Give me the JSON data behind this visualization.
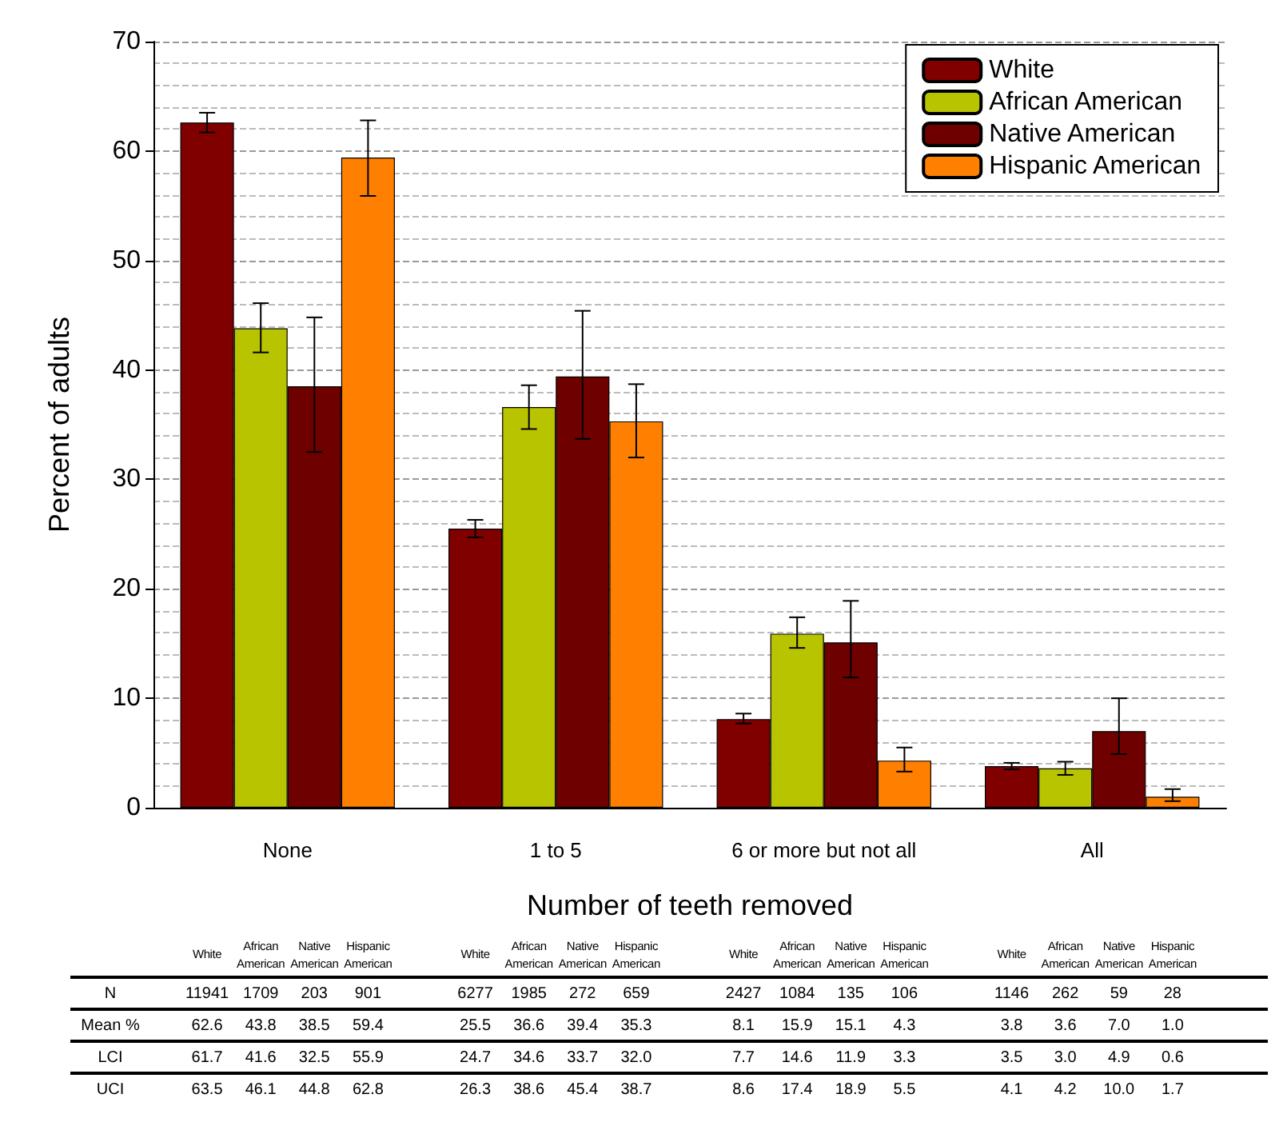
{
  "chart_data": {
    "type": "bar",
    "xlabel": "Number of teeth removed",
    "ylabel": "Percent of adults",
    "categories": [
      "None",
      "1 to 5",
      "6 or more but not all",
      "All"
    ],
    "series": [
      {
        "name": "White",
        "color": "#800000",
        "values": [
          62.6,
          25.5,
          8.1,
          3.8
        ],
        "errors": [
          [
            61.7,
            63.5
          ],
          [
            24.7,
            26.3
          ],
          [
            7.7,
            8.6
          ],
          [
            3.5,
            4.1
          ]
        ]
      },
      {
        "name": "African American",
        "color": "#b9c400",
        "values": [
          43.8,
          36.6,
          15.9,
          3.6
        ],
        "errors": [
          [
            41.6,
            46.1
          ],
          [
            34.6,
            38.6
          ],
          [
            14.6,
            17.4
          ],
          [
            3.0,
            4.2
          ]
        ]
      },
      {
        "name": "Native American",
        "color": "#6e0000",
        "values": [
          38.5,
          39.4,
          15.1,
          7.0
        ],
        "errors": [
          [
            32.5,
            44.8
          ],
          [
            33.7,
            45.4
          ],
          [
            11.9,
            18.9
          ],
          [
            4.9,
            10.0
          ]
        ]
      },
      {
        "name": "Hispanic American",
        "color": "#ff8000",
        "values": [
          59.4,
          35.3,
          4.3,
          1.0
        ],
        "errors": [
          [
            55.9,
            62.8
          ],
          [
            32.0,
            38.7
          ],
          [
            3.3,
            5.5
          ],
          [
            0.6,
            1.7
          ]
        ]
      }
    ],
    "annotations": [
      "N",
      "Mean %",
      "LCI",
      "UCI",
      "11941",
      "1709",
      "203",
      "901",
      "6277",
      "1985",
      "272",
      "659",
      "2427",
      "1084",
      "135",
      "106",
      "1146",
      "262",
      "59",
      "28",
      "62.6",
      "43.8",
      "38.5",
      "59.4",
      "25.5",
      "36.6",
      "39.4",
      "35.3",
      "8.1",
      "15.9",
      "15.1",
      "4.3",
      "3.8",
      "3.6",
      "7.0",
      "1.0",
      "61.7",
      "41.6",
      "32.5",
      "55.9",
      "24.7",
      "34.6",
      "33.7",
      "32.0",
      "7.7",
      "14.6",
      "11.9",
      "3.3",
      "3.5",
      "3.0",
      "4.9",
      "0.6",
      "63.5",
      "46.1",
      "44.8",
      "62.8",
      "26.3",
      "38.6",
      "45.4",
      "38.7",
      "8.6",
      "17.4",
      "18.9",
      "5.5",
      "4.1",
      "4.2",
      "10.0",
      "1.7"
    ],
    "ylim": [
      0,
      70
    ],
    "yticks": [
      0,
      10,
      20,
      30,
      40,
      50,
      60,
      70
    ],
    "grid": "y",
    "legend": "top right"
  }
}
